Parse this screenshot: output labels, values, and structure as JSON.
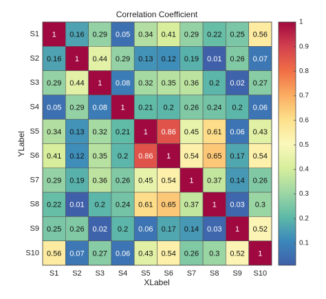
{
  "chart_data": {
    "type": "heatmap",
    "title": "Correlation Coefficient",
    "x_label": "XLabel",
    "y_label": "YLabel",
    "x_categories": [
      "S1",
      "S2",
      "S3",
      "S4",
      "S5",
      "S6",
      "S7",
      "S8",
      "S9",
      "S10"
    ],
    "y_categories": [
      "S1",
      "S2",
      "S3",
      "S4",
      "S5",
      "S6",
      "S7",
      "S8",
      "S9",
      "S10"
    ],
    "values": [
      [
        1,
        0.16,
        0.29,
        0.05,
        0.34,
        0.41,
        0.29,
        0.22,
        0.25,
        0.56
      ],
      [
        0.16,
        1,
        0.44,
        0.29,
        0.13,
        0.12,
        0.19,
        0.01,
        0.26,
        0.07
      ],
      [
        0.29,
        0.44,
        1,
        0.08,
        0.32,
        0.35,
        0.36,
        0.2,
        0.02,
        0.27
      ],
      [
        0.05,
        0.29,
        0.08,
        1,
        0.21,
        0.2,
        0.26,
        0.24,
        0.2,
        0.06
      ],
      [
        0.34,
        0.13,
        0.32,
        0.21,
        1,
        0.86,
        0.45,
        0.61,
        0.06,
        0.43
      ],
      [
        0.41,
        0.12,
        0.35,
        0.2,
        0.86,
        1,
        0.54,
        0.65,
        0.17,
        0.54
      ],
      [
        0.29,
        0.19,
        0.36,
        0.26,
        0.45,
        0.54,
        1,
        0.37,
        0.14,
        0.26
      ],
      [
        0.22,
        0.01,
        0.2,
        0.24,
        0.61,
        0.65,
        0.37,
        1,
        0.03,
        0.3
      ],
      [
        0.25,
        0.26,
        0.02,
        0.2,
        0.06,
        0.17,
        0.14,
        0.03,
        1,
        0.52
      ],
      [
        0.56,
        0.07,
        0.27,
        0.06,
        0.43,
        0.54,
        0.26,
        0.3,
        0.52,
        1
      ]
    ],
    "clim": [
      0.01,
      1
    ],
    "cticks": [
      0.1,
      0.2,
      0.3,
      0.4,
      0.5,
      0.6,
      0.7,
      0.8,
      0.9,
      1
    ],
    "colormap": [
      "#3f5fa9",
      "#3b88bc",
      "#5fbaa7",
      "#9fd7a4",
      "#d7ee9c",
      "#fbf8bb",
      "#fde08b",
      "#fbac62",
      "#f06e45",
      "#d3404e",
      "#a0093f"
    ]
  }
}
